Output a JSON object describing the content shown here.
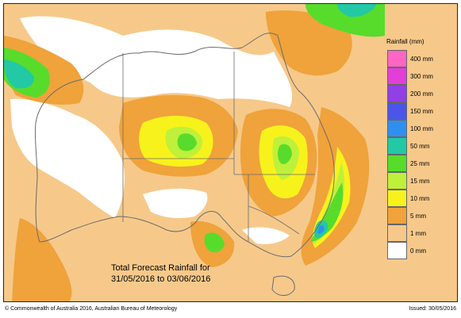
{
  "legend": {
    "title": "Rainfall (mm)",
    "categories": [
      {
        "label": "400 mm",
        "color": "#ff66c4"
      },
      {
        "label": "300 mm",
        "color": "#e23ed8"
      },
      {
        "label": "200 mm",
        "color": "#9140e6"
      },
      {
        "label": "150 mm",
        "color": "#4b56e8"
      },
      {
        "label": "100 mm",
        "color": "#2f8ff0"
      },
      {
        "label": "50 mm",
        "color": "#22c9a4"
      },
      {
        "label": "25 mm",
        "color": "#57dc2c"
      },
      {
        "label": "15 mm",
        "color": "#bff03a"
      },
      {
        "label": "10 mm",
        "color": "#f8f21c"
      },
      {
        "label": "5 mm",
        "color": "#f0a23b"
      },
      {
        "label": "1 mm",
        "color": "#f6c98a"
      },
      {
        "label": "0 mm",
        "color": "#ffffff"
      }
    ]
  },
  "caption": {
    "line1": "Total Forecast Rainfall for",
    "line2": "31/05/2016 to 03/06/2016"
  },
  "footer": {
    "copyright": "© Commonwealth of Australia 2016, Australian Bureau of Meteorology",
    "issued": "Issued: 30/05/2016"
  }
}
